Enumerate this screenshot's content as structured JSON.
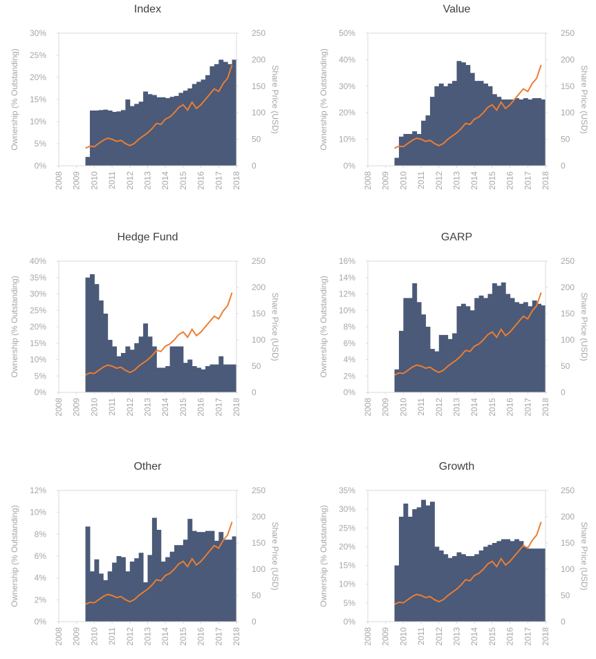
{
  "chart_data": [
    {
      "type": "bar",
      "title": "Index",
      "ylabel": "Ownership (% Outstanding)",
      "y2label": "Share Price (USD)",
      "x": [
        2009.5,
        2009.75,
        2010,
        2010.25,
        2010.5,
        2010.75,
        2011,
        2011.25,
        2011.5,
        2011.75,
        2012,
        2012.25,
        2012.5,
        2012.75,
        2013,
        2013.25,
        2013.5,
        2013.75,
        2014,
        2014.25,
        2014.5,
        2014.75,
        2015,
        2015.25,
        2015.5,
        2015.75,
        2016,
        2016.25,
        2016.5,
        2016.75,
        2017,
        2017.25,
        2017.5,
        2017.75
      ],
      "series": [
        {
          "type": "bar",
          "color": "#4a5a78",
          "values": [
            2,
            12.5,
            12.5,
            12.6,
            12.7,
            12.5,
            12.2,
            12.3,
            12.6,
            15,
            13.5,
            14,
            14.5,
            16.8,
            16.2,
            16,
            15.5,
            15.5,
            15.3,
            15.6,
            15.8,
            16.5,
            17,
            17.5,
            18.5,
            19,
            19.5,
            20.5,
            22.5,
            23,
            24,
            23.5,
            23,
            24
          ]
        },
        {
          "type": "line",
          "axis": "y2",
          "color": "#ed7d31",
          "values": [
            33,
            37,
            36,
            42,
            48,
            52,
            50,
            46,
            48,
            42,
            38,
            42,
            50,
            56,
            62,
            70,
            80,
            78,
            88,
            92,
            100,
            110,
            115,
            105,
            120,
            108,
            115,
            125,
            135,
            145,
            140,
            155,
            165,
            190
          ]
        }
      ],
      "xlim": [
        2008,
        2018
      ],
      "xticks": [
        2008,
        2009,
        2010,
        2011,
        2012,
        2013,
        2014,
        2015,
        2016,
        2017,
        2018
      ],
      "ylim": [
        0,
        30
      ],
      "yticks": [
        {
          "value": 0,
          "label": "0%"
        },
        {
          "value": 5,
          "label": "5%"
        },
        {
          "value": 10,
          "label": "10%"
        },
        {
          "value": 15,
          "label": "15%"
        },
        {
          "value": 20,
          "label": "20%"
        },
        {
          "value": 25,
          "label": "25%"
        },
        {
          "value": 30,
          "label": "30%"
        }
      ],
      "y2lim": [
        0,
        250
      ],
      "y2ticks": [
        0,
        50,
        100,
        150,
        200,
        250
      ]
    },
    {
      "type": "bar",
      "title": "Value",
      "ylabel": "Ownership (% Outstanding)",
      "y2label": "Share Price (USD)",
      "x": [
        2009.5,
        2009.75,
        2010,
        2010.25,
        2010.5,
        2010.75,
        2011,
        2011.25,
        2011.5,
        2011.75,
        2012,
        2012.25,
        2012.5,
        2012.75,
        2013,
        2013.25,
        2013.5,
        2013.75,
        2014,
        2014.25,
        2014.5,
        2014.75,
        2015,
        2015.25,
        2015.5,
        2015.75,
        2016,
        2016.25,
        2016.5,
        2016.75,
        2017,
        2017.25,
        2017.5,
        2017.75
      ],
      "series": [
        {
          "type": "bar",
          "color": "#4a5a78",
          "values": [
            3,
            11,
            12,
            12,
            13,
            12,
            17,
            19,
            26,
            30,
            31,
            30,
            31,
            32,
            39.5,
            39,
            38,
            35,
            32,
            32,
            31,
            30,
            27,
            26,
            25,
            25,
            25,
            25.5,
            25,
            25.5,
            25,
            25.5,
            25.5,
            25
          ]
        },
        {
          "type": "line",
          "axis": "y2",
          "color": "#ed7d31",
          "values": [
            33,
            37,
            36,
            42,
            48,
            52,
            50,
            46,
            48,
            42,
            38,
            42,
            50,
            56,
            62,
            70,
            80,
            78,
            88,
            92,
            100,
            110,
            115,
            105,
            120,
            108,
            115,
            125,
            135,
            145,
            140,
            155,
            165,
            190
          ]
        }
      ],
      "xlim": [
        2008,
        2018
      ],
      "xticks": [
        2008,
        2009,
        2010,
        2011,
        2012,
        2013,
        2014,
        2015,
        2016,
        2017,
        2018
      ],
      "ylim": [
        0,
        50
      ],
      "yticks": [
        {
          "value": 0,
          "label": "0%"
        },
        {
          "value": 10,
          "label": "10%"
        },
        {
          "value": 20,
          "label": "20%"
        },
        {
          "value": 30,
          "label": "30%"
        },
        {
          "value": 40,
          "label": "40%"
        },
        {
          "value": 50,
          "label": "50%"
        }
      ],
      "y2lim": [
        0,
        250
      ],
      "y2ticks": [
        0,
        50,
        100,
        150,
        200,
        250
      ]
    },
    {
      "type": "bar",
      "title": "Hedge Fund",
      "ylabel": "Ownership (% Outstanding)",
      "y2label": "Share Price (USD)",
      "x": [
        2009.5,
        2009.75,
        2010,
        2010.25,
        2010.5,
        2010.75,
        2011,
        2011.25,
        2011.5,
        2011.75,
        2012,
        2012.25,
        2012.5,
        2012.75,
        2013,
        2013.25,
        2013.5,
        2013.75,
        2014,
        2014.25,
        2014.5,
        2014.75,
        2015,
        2015.25,
        2015.5,
        2015.75,
        2016,
        2016.25,
        2016.5,
        2016.75,
        2017,
        2017.25,
        2017.5,
        2017.75
      ],
      "series": [
        {
          "type": "bar",
          "color": "#4a5a78",
          "values": [
            35,
            36,
            33,
            28,
            24,
            16,
            14,
            11,
            12,
            14,
            13,
            15,
            17,
            21,
            17,
            14,
            7.5,
            7.5,
            8,
            14,
            14,
            14,
            9,
            10,
            8,
            7.5,
            7,
            8,
            8.5,
            8.5,
            11,
            8.5,
            8.5,
            8.5
          ]
        },
        {
          "type": "line",
          "axis": "y2",
          "color": "#ed7d31",
          "values": [
            33,
            37,
            36,
            42,
            48,
            52,
            50,
            46,
            48,
            42,
            38,
            42,
            50,
            56,
            62,
            70,
            80,
            78,
            88,
            92,
            100,
            110,
            115,
            105,
            120,
            108,
            115,
            125,
            135,
            145,
            140,
            155,
            165,
            190
          ]
        }
      ],
      "xlim": [
        2008,
        2018
      ],
      "xticks": [
        2008,
        2009,
        2010,
        2011,
        2012,
        2013,
        2014,
        2015,
        2016,
        2017,
        2018
      ],
      "ylim": [
        0,
        40
      ],
      "yticks": [
        {
          "value": 0,
          "label": "0%"
        },
        {
          "value": 5,
          "label": "5%"
        },
        {
          "value": 10,
          "label": "10%"
        },
        {
          "value": 15,
          "label": "15%"
        },
        {
          "value": 20,
          "label": "20%"
        },
        {
          "value": 25,
          "label": "25%"
        },
        {
          "value": 30,
          "label": "30%"
        },
        {
          "value": 35,
          "label": "35%"
        },
        {
          "value": 40,
          "label": "40%"
        }
      ],
      "y2lim": [
        0,
        250
      ],
      "y2ticks": [
        0,
        50,
        100,
        150,
        200,
        250
      ]
    },
    {
      "type": "bar",
      "title": "GARP",
      "ylabel": "Ownership (% Outstanding)",
      "y2label": "Share Price (USD)",
      "x": [
        2009.5,
        2009.75,
        2010,
        2010.25,
        2010.5,
        2010.75,
        2011,
        2011.25,
        2011.5,
        2011.75,
        2012,
        2012.25,
        2012.5,
        2012.75,
        2013,
        2013.25,
        2013.5,
        2013.75,
        2014,
        2014.25,
        2014.5,
        2014.75,
        2015,
        2015.25,
        2015.5,
        2015.75,
        2016,
        2016.25,
        2016.5,
        2016.75,
        2017,
        2017.25,
        2017.5,
        2017.75
      ],
      "series": [
        {
          "type": "bar",
          "color": "#4a5a78",
          "values": [
            2.8,
            7.5,
            11.5,
            11.5,
            13.3,
            11,
            9.5,
            8,
            5.3,
            5,
            7,
            7,
            6.5,
            7.2,
            10.5,
            10.8,
            10.5,
            10,
            11.5,
            11.8,
            11.5,
            12,
            13.3,
            13,
            13.4,
            12,
            11.5,
            11,
            10.8,
            11,
            10.5,
            11.2,
            10.8,
            10.6
          ]
        },
        {
          "type": "line",
          "axis": "y2",
          "color": "#ed7d31",
          "values": [
            33,
            37,
            36,
            42,
            48,
            52,
            50,
            46,
            48,
            42,
            38,
            42,
            50,
            56,
            62,
            70,
            80,
            78,
            88,
            92,
            100,
            110,
            115,
            105,
            120,
            108,
            115,
            125,
            135,
            145,
            140,
            155,
            165,
            190
          ]
        }
      ],
      "xlim": [
        2008,
        2018
      ],
      "xticks": [
        2008,
        2009,
        2010,
        2011,
        2012,
        2013,
        2014,
        2015,
        2016,
        2017,
        2018
      ],
      "ylim": [
        0,
        16
      ],
      "yticks": [
        {
          "value": 0,
          "label": "0%"
        },
        {
          "value": 2,
          "label": "2%"
        },
        {
          "value": 4,
          "label": "4%"
        },
        {
          "value": 6,
          "label": "6%"
        },
        {
          "value": 8,
          "label": "8%"
        },
        {
          "value": 10,
          "label": "10%"
        },
        {
          "value": 12,
          "label": "12%"
        },
        {
          "value": 14,
          "label": "14%"
        },
        {
          "value": 16,
          "label": "16%"
        }
      ],
      "y2lim": [
        0,
        250
      ],
      "y2ticks": [
        0,
        50,
        100,
        150,
        200,
        250
      ]
    },
    {
      "type": "bar",
      "title": "Other",
      "ylabel": "Ownership (% Outstanding)",
      "y2label": "Share Price (USD)",
      "x": [
        2009.5,
        2009.75,
        2010,
        2010.25,
        2010.5,
        2010.75,
        2011,
        2011.25,
        2011.5,
        2011.75,
        2012,
        2012.25,
        2012.5,
        2012.75,
        2013,
        2013.25,
        2013.5,
        2013.75,
        2014,
        2014.25,
        2014.5,
        2014.75,
        2015,
        2015.25,
        2015.5,
        2015.75,
        2016,
        2016.25,
        2016.5,
        2016.75,
        2017,
        2017.25,
        2017.5,
        2017.75
      ],
      "series": [
        {
          "type": "bar",
          "color": "#4a5a78",
          "values": [
            8.7,
            4.6,
            5.7,
            4.4,
            3.8,
            4.6,
            5.4,
            6,
            5.9,
            4.6,
            5.5,
            5.8,
            6.3,
            3.6,
            6.1,
            9.5,
            8.4,
            5.5,
            5.9,
            6.4,
            7,
            7,
            7.5,
            9.4,
            8.3,
            8.2,
            8.2,
            8.3,
            8.3,
            7.4,
            8.2,
            7.5,
            7.5,
            7.8
          ]
        },
        {
          "type": "line",
          "axis": "y2",
          "color": "#ed7d31",
          "values": [
            33,
            37,
            36,
            42,
            48,
            52,
            50,
            46,
            48,
            42,
            38,
            42,
            50,
            56,
            62,
            70,
            80,
            78,
            88,
            92,
            100,
            110,
            115,
            105,
            120,
            108,
            115,
            125,
            135,
            145,
            140,
            155,
            165,
            190
          ]
        }
      ],
      "xlim": [
        2008,
        2018
      ],
      "xticks": [
        2008,
        2009,
        2010,
        2011,
        2012,
        2013,
        2014,
        2015,
        2016,
        2017,
        2018
      ],
      "ylim": [
        0,
        12
      ],
      "yticks": [
        {
          "value": 0,
          "label": "0%"
        },
        {
          "value": 2,
          "label": "2%"
        },
        {
          "value": 4,
          "label": "4%"
        },
        {
          "value": 6,
          "label": "6%"
        },
        {
          "value": 8,
          "label": "8%"
        },
        {
          "value": 10,
          "label": "10%"
        },
        {
          "value": 12,
          "label": "12%"
        }
      ],
      "y2lim": [
        0,
        250
      ],
      "y2ticks": [
        0,
        50,
        100,
        150,
        200,
        250
      ]
    },
    {
      "type": "bar",
      "title": "Growth",
      "ylabel": "Ownership (% Outstanding)",
      "y2label": "Share Price (USD)",
      "x": [
        2009.5,
        2009.75,
        2010,
        2010.25,
        2010.5,
        2010.75,
        2011,
        2011.25,
        2011.5,
        2011.75,
        2012,
        2012.25,
        2012.5,
        2012.75,
        2013,
        2013.25,
        2013.5,
        2013.75,
        2014,
        2014.25,
        2014.5,
        2014.75,
        2015,
        2015.25,
        2015.5,
        2015.75,
        2016,
        2016.25,
        2016.5,
        2016.75,
        2017,
        2017.25,
        2017.5,
        2017.75
      ],
      "series": [
        {
          "type": "bar",
          "color": "#4a5a78",
          "values": [
            15,
            28,
            31.5,
            28,
            30,
            30.5,
            32.5,
            31,
            32,
            20,
            19,
            18,
            17,
            17.5,
            18.5,
            18,
            17.5,
            17.5,
            18,
            19,
            20,
            20.5,
            21,
            21.5,
            22,
            22,
            21.5,
            22,
            21.5,
            20,
            19.5,
            19.5,
            19.5,
            19.5
          ]
        },
        {
          "type": "line",
          "axis": "y2",
          "color": "#ed7d31",
          "values": [
            33,
            37,
            36,
            42,
            48,
            52,
            50,
            46,
            48,
            42,
            38,
            42,
            50,
            56,
            62,
            70,
            80,
            78,
            88,
            92,
            100,
            110,
            115,
            105,
            120,
            108,
            115,
            125,
            135,
            145,
            140,
            155,
            165,
            190
          ]
        }
      ],
      "xlim": [
        2008,
        2018
      ],
      "xticks": [
        2008,
        2009,
        2010,
        2011,
        2012,
        2013,
        2014,
        2015,
        2016,
        2017,
        2018
      ],
      "ylim": [
        0,
        35
      ],
      "yticks": [
        {
          "value": 0,
          "label": "0%"
        },
        {
          "value": 5,
          "label": "5%"
        },
        {
          "value": 10,
          "label": "10%"
        },
        {
          "value": 15,
          "label": "15%"
        },
        {
          "value": 20,
          "label": "20%"
        },
        {
          "value": 25,
          "label": "25%"
        },
        {
          "value": 30,
          "label": "30%"
        },
        {
          "value": 35,
          "label": "35%"
        }
      ],
      "y2lim": [
        0,
        250
      ],
      "y2ticks": [
        0,
        50,
        100,
        150,
        200,
        250
      ]
    }
  ]
}
